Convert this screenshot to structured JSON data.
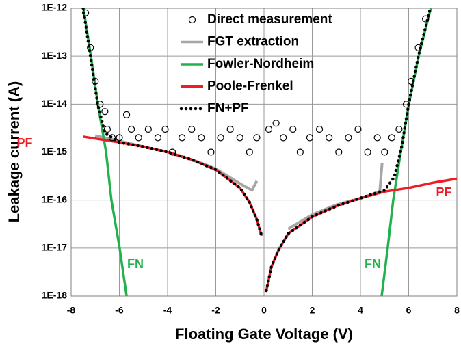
{
  "chart_data": {
    "type": "line",
    "xlabel": "Floating Gate Voltage (V)",
    "ylabel": "Leakage current (A)",
    "xlim": [
      -8,
      8
    ],
    "xticks": [
      -8,
      -6,
      -4,
      -2,
      0,
      2,
      4,
      6,
      8
    ],
    "ylim": [
      1e-18,
      1e-12
    ],
    "yscale": "log",
    "yticks": [
      {
        "value": 1e-18,
        "label": "1E-18"
      },
      {
        "value": 1e-17,
        "label": "1E-17"
      },
      {
        "value": 1e-16,
        "label": "1E-16"
      },
      {
        "value": 1e-15,
        "label": "1E-15"
      },
      {
        "value": 1e-14,
        "label": "1E-14"
      },
      {
        "value": 1e-13,
        "label": "1E-13"
      },
      {
        "value": 1e-12,
        "label": "1E-12"
      }
    ],
    "grid": true,
    "legend": "upper center",
    "series": [
      {
        "name": "Direct measurement",
        "color": "#000000",
        "style": "markers",
        "x": [
          -7.4,
          -7.2,
          -7.0,
          -6.8,
          -6.6,
          -6.5,
          -6.3,
          -6.0,
          -5.7,
          -5.5,
          -5.2,
          -4.8,
          -4.4,
          -4.1,
          -3.8,
          -3.4,
          -3.0,
          -2.6,
          -2.2,
          -1.8,
          -1.4,
          -1.0,
          -0.6,
          -0.3,
          0.2,
          0.5,
          0.8,
          1.2,
          1.5,
          1.9,
          2.3,
          2.7,
          3.1,
          3.5,
          3.9,
          4.3,
          4.7,
          5.0,
          5.3,
          5.6,
          5.9,
          6.1,
          6.4,
          6.7
        ],
        "values": [
          8e-13,
          1.5e-13,
          3e-14,
          1e-14,
          7e-15,
          3e-15,
          2e-15,
          2e-15,
          6e-15,
          3e-15,
          2e-15,
          3e-15,
          2e-15,
          3e-15,
          1e-15,
          2e-15,
          3e-15,
          2e-15,
          1e-15,
          2e-15,
          3e-15,
          2e-15,
          1e-15,
          2e-15,
          3e-15,
          4e-15,
          2e-15,
          3e-15,
          1e-15,
          2e-15,
          3e-15,
          2e-15,
          1e-15,
          2e-15,
          3e-15,
          1e-15,
          2e-15,
          1e-15,
          2e-15,
          3e-15,
          1e-14,
          3e-14,
          1.5e-13,
          6e-13
        ]
      },
      {
        "name": "FGT extraction",
        "color": "#a6a6a6",
        "style": "line",
        "x": [
          -7.0,
          -6.0,
          -5.0,
          -4.0,
          -3.0,
          -2.0,
          -1.0,
          -0.5,
          -0.3,
          0.5,
          1.0,
          2.0,
          3.0,
          4.0,
          4.8,
          4.9
        ],
        "values": [
          2.2e-15,
          1.7e-15,
          1.3e-15,
          1e-15,
          7e-16,
          4.5e-16,
          2.2e-16,
          1.6e-16,
          2.5e-16,
          null,
          2.5e-17,
          5e-17,
          8e-17,
          1.1e-16,
          1.5e-16,
          6e-16
        ]
      },
      {
        "name": "Fowler-Nordheim",
        "color": "#22b14c",
        "style": "line",
        "x": [
          -7.49,
          -7.18,
          -6.89,
          -6.55,
          -6.33,
          -5.99,
          -5.7,
          0,
          4.88,
          5.13,
          5.36,
          5.67,
          6.01,
          6.41,
          6.92
        ],
        "values": [
          1e-12,
          1e-13,
          1e-14,
          1e-15,
          1e-16,
          1e-17,
          1e-18,
          null,
          1e-18,
          1e-17,
          1e-16,
          1e-15,
          1e-14,
          1e-13,
          1e-12
        ]
      },
      {
        "name": "Poole-Frenkel",
        "color": "#ee1c25",
        "style": "line",
        "x": [
          -7.5,
          -6,
          -5,
          -4,
          -3,
          -2,
          -1,
          -0.6,
          -0.3,
          -0.1,
          0,
          0.1,
          0.3,
          0.6,
          1,
          2,
          3,
          4,
          5,
          6,
          7,
          8
        ],
        "values": [
          2.1e-15,
          1.6e-15,
          1.3e-15,
          1e-15,
          7e-16,
          4.3e-16,
          1.8e-16,
          9e-17,
          4e-17,
          1.8e-17,
          null,
          1.3e-18,
          4e-18,
          9e-18,
          2e-17,
          4.5e-17,
          7.5e-17,
          1.1e-16,
          1.5e-16,
          1.8e-16,
          2.3e-16,
          2.8e-16
        ]
      },
      {
        "name": "FN+PF",
        "color": "#000000",
        "style": "dotted",
        "x": [
          -7.5,
          -7.2,
          -6.9,
          -6.6,
          -6,
          -5,
          -4,
          -3,
          -2,
          -1,
          -0.6,
          -0.3,
          -0.1,
          0,
          0.1,
          0.3,
          0.6,
          1,
          2,
          3,
          4,
          5,
          5.4,
          5.7,
          6,
          6.4,
          6.9
        ],
        "values": [
          1e-12,
          1e-13,
          1e-14,
          2.5e-15,
          1.6e-15,
          1.3e-15,
          1e-15,
          7e-16,
          4.3e-16,
          1.8e-16,
          9e-17,
          4e-17,
          1.8e-17,
          null,
          1.3e-18,
          4e-18,
          9e-18,
          2e-17,
          4.5e-17,
          7.5e-17,
          1.1e-16,
          1.6e-16,
          3e-16,
          1.2e-15,
          1e-14,
          1e-13,
          1e-12
        ]
      }
    ],
    "annotations": [
      {
        "text": "PF",
        "color": "#ee1c25"
      },
      {
        "text": "PF",
        "color": "#ee1c25"
      },
      {
        "text": "FN",
        "color": "#22b14c"
      },
      {
        "text": "FN",
        "color": "#22b14c"
      }
    ]
  }
}
